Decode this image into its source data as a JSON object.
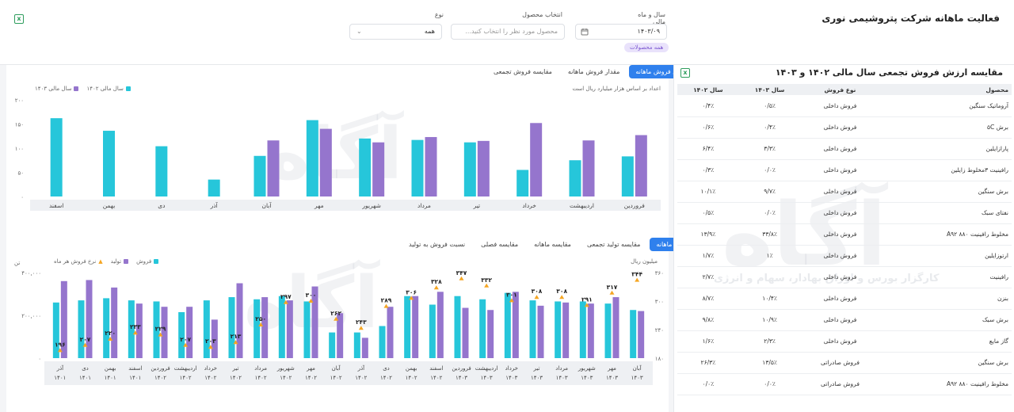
{
  "header": {
    "title": "فعالیت ماهانه شرکت پتروشیمی نوری",
    "filters": {
      "period_label": "سال و ماه مالی",
      "period_value": "۱۴۰۳/۰۹",
      "product_label": "انتخاب محصول",
      "product_placeholder": "محصول مورد نظر را انتخاب کنید...",
      "type_label": "نوع",
      "type_value": "همه",
      "chip": "همه محصولات"
    }
  },
  "watermark": {
    "logo": "آگاه",
    "tagline": "کارگزار بورس و اوراق بهادار، سهام و انرژی"
  },
  "chart1": {
    "tabs": [
      "ارزش فروش ماهانه",
      "مقدار فروش ماهانه",
      "مقایسه فروش تجمعی"
    ],
    "legend": [
      "سال مالی ۱۴۰۳",
      "سال مالی ۱۴۰۲"
    ],
    "note": "اعداد بر اساس هزار میلیارد ریال است",
    "y_ticks": [
      "۲۰۰",
      "۱۵۰",
      "۱۰۰",
      "۵۰",
      "۰"
    ]
  },
  "chart2": {
    "tabs": [
      "فروش ماهانه",
      "مقایسه تولید تجمعی",
      "مقایسه ماهانه",
      "مقایسه فصلی",
      "نسبت فروش به تولید"
    ],
    "legend": [
      "فروش",
      "تولید",
      "نرخ فروش هر ماه"
    ],
    "left_unit": "تن",
    "right_unit": "میلیون ریال",
    "y_left_ticks": [
      "۴۰۰,۰۰۰",
      "۲۰۰,۰۰۰",
      "۰"
    ],
    "y_right_ticks": [
      "۳۶۰",
      "۳۰۰",
      "۲۴۰",
      "۱۸۰"
    ]
  },
  "chart_data": [
    {
      "type": "bar",
      "title": "",
      "categories": [
        "فروردین",
        "اردیبهشت",
        "خرداد",
        "تیر",
        "مرداد",
        "شهریور",
        "مهر",
        "آبان",
        "آذر",
        "دی",
        "بهمن",
        "اسفند"
      ],
      "series": [
        {
          "name": "سال مالی ۱۴۰۳",
          "color": "#26c6da",
          "values": [
            83,
            75,
            55,
            112,
            117,
            120,
            158,
            84,
            35,
            104,
            136,
            162
          ]
        },
        {
          "name": "سال مالی ۱۴۰۲",
          "color": "#9575cd",
          "values": [
            127,
            116,
            152,
            115,
            123,
            112,
            140,
            116,
            null,
            null,
            null,
            null
          ]
        }
      ],
      "ylim": [
        0,
        200
      ],
      "y_ticks": [
        0,
        50,
        100,
        150,
        200
      ],
      "legend_position": "top-left",
      "grid": false
    },
    {
      "type": "bar",
      "title": "",
      "categories": [
        "آذر ۱۴۰۱",
        "دی ۱۴۰۱",
        "بهمن ۱۴۰۱",
        "اسفند ۱۴۰۱",
        "فروردین ۱۴۰۲",
        "اردیبهشت ۱۴۰۲",
        "خرداد ۱۴۰۲",
        "تیر ۱۴۰۲",
        "مرداد ۱۴۰۲",
        "شهریور ۱۴۰۲",
        "مهر ۱۴۰۲",
        "آبان ۱۴۰۲",
        "آذر ۱۴۰۲",
        "دی ۱۴۰۲",
        "بهمن ۱۴۰۲",
        "اسفند ۱۴۰۲",
        "فروردین ۱۴۰۳",
        "اردیبهشت ۱۴۰۳",
        "خرداد ۱۴۰۳",
        "تیر ۱۴۰۳",
        "مرداد ۱۴۰۳",
        "شهریور ۱۴۰۳",
        "مهر ۱۴۰۳",
        "آبان ۱۴۰۳"
      ],
      "category_months": [
        "آذر",
        "دی",
        "بهمن",
        "اسفند",
        "فروردین",
        "اردیبهشت",
        "خرداد",
        "تیر",
        "مرداد",
        "شهریور",
        "مهر",
        "آبان",
        "آذر",
        "دی",
        "بهمن",
        "اسفند",
        "فروردین",
        "اردیبهشت",
        "خرداد",
        "تیر",
        "مرداد",
        "شهریور",
        "مهر",
        "آبان"
      ],
      "category_years": [
        "۱۴۰۱",
        "۱۴۰۱",
        "۱۴۰۱",
        "۱۴۰۱",
        "۱۴۰۲",
        "۱۴۰۲",
        "۱۴۰۲",
        "۱۴۰۲",
        "۱۴۰۲",
        "۱۴۰۲",
        "۱۴۰۲",
        "۱۴۰۲",
        "۱۴۰۲",
        "۱۴۰۲",
        "۱۴۰۲",
        "۱۴۰۲",
        "۱۴۰۳",
        "۱۴۰۳",
        "۱۴۰۳",
        "۱۴۰۳",
        "۱۴۰۳",
        "۱۴۰۳",
        "۱۴۰۳",
        "۱۴۰۳"
      ],
      "series": [
        {
          "name": "فروش",
          "color": "#26c6da",
          "axis": "left",
          "values": [
            260000,
            270000,
            280000,
            270000,
            265000,
            215000,
            270000,
            285000,
            275000,
            290000,
            265000,
            120000,
            120000,
            150000,
            290000,
            250000,
            290000,
            275000,
            305000,
            270000,
            265000,
            265000,
            255000,
            225000
          ]
        },
        {
          "name": "تولید",
          "color": "#9575cd",
          "axis": "left",
          "values": [
            360000,
            365000,
            330000,
            255000,
            240000,
            240000,
            180000,
            350000,
            285000,
            270000,
            335000,
            210000,
            95000,
            240000,
            290000,
            310000,
            235000,
            225000,
            310000,
            245000,
            260000,
            255000,
            285000,
            220000
          ]
        },
        {
          "name": "نرخ فروش هر ماه",
          "color": "#f5a623",
          "axis": "right",
          "values": [
            196,
            207,
            220,
            233,
            229,
            207,
            203,
            213,
            250,
            297,
            300,
            262,
            243,
            289,
            306,
            328,
            347,
            332,
            301,
            308,
            308,
            291,
            317,
            344
          ],
          "labels": [
            "۱۹۶",
            "۲۰۷",
            "۲۲۰",
            "۲۳۳",
            "۲۲۹",
            "۲۰۷",
            "۲۰۳",
            "۲۱۳",
            "۲۵۰",
            "۲۹۷",
            "۳۰۰",
            "۲۶۲",
            "۲۴۳",
            "۲۸۹",
            "۳۰۶",
            "۳۲۸",
            "۳۴۷",
            "۳۳۲",
            "۳۰۱",
            "۳۰۸",
            "۳۰۸",
            "۲۹۱",
            "۳۱۷",
            "۳۴۴"
          ]
        }
      ],
      "ylim_left": [
        0,
        400000
      ],
      "ylim_right": [
        180,
        360
      ],
      "legend_position": "top-left",
      "grid": false
    }
  ],
  "table": {
    "title": "مقایسه ارزش فروش تجمعی سال مالی ۱۴۰۲ و ۱۴۰۳",
    "headers": [
      "محصول",
      "نوع فروش",
      "سال ۱۴۰۳",
      "سال ۱۴۰۲"
    ],
    "rows": [
      [
        "آروماتیک سنگین",
        "فروش داخلی",
        "۰/۵٪",
        "۰/۴٪"
      ],
      [
        "برش ۵C",
        "فروش داخلی",
        "۰/۴٪",
        "۰/۶٪"
      ],
      [
        "پارازایلین",
        "فروش داخلی",
        "۳/۳٪",
        "۶/۴٪"
      ],
      [
        "رافینیت ۳مخلوط زایلین",
        "فروش داخلی",
        "۰/۰٪",
        "۰/۳٪"
      ],
      [
        "برش سنگین",
        "فروش داخلی",
        "۹/۷٪",
        "۱۰/۱٪"
      ],
      [
        "نفتای سبک",
        "فروش داخلی",
        "۰/۰٪",
        "۰/۵٪"
      ],
      [
        "مخلوط رافینیت ۸۸۰ A۹۲",
        "فروش داخلی",
        "۳۳/۸٪",
        "۱۳/۹٪"
      ],
      [
        "ارتوزایلین",
        "فروش داخلی",
        "۱٪",
        "۱/۷٪"
      ],
      [
        "رافینیت",
        "فروش داخلی",
        "",
        "۲/۷٪"
      ],
      [
        "بنزن",
        "فروش داخلی",
        "۱۰/۴٪",
        "۸/۷٪"
      ],
      [
        "برش سبک",
        "فروش داخلی",
        "۱۰/۹٪",
        "۹/۸٪"
      ],
      [
        "گاز مایع",
        "فروش داخلی",
        "۲/۳٪",
        "۱/۶٪"
      ],
      [
        "برش سنگین",
        "فروش صادراتی",
        "۱۳/۵٪",
        "۲۶/۳٪"
      ],
      [
        "مخلوط رافینیت ۸۸۰ A۹۲",
        "فروش صادراتی",
        "۰/۰٪",
        "۰/۰٪"
      ]
    ]
  }
}
